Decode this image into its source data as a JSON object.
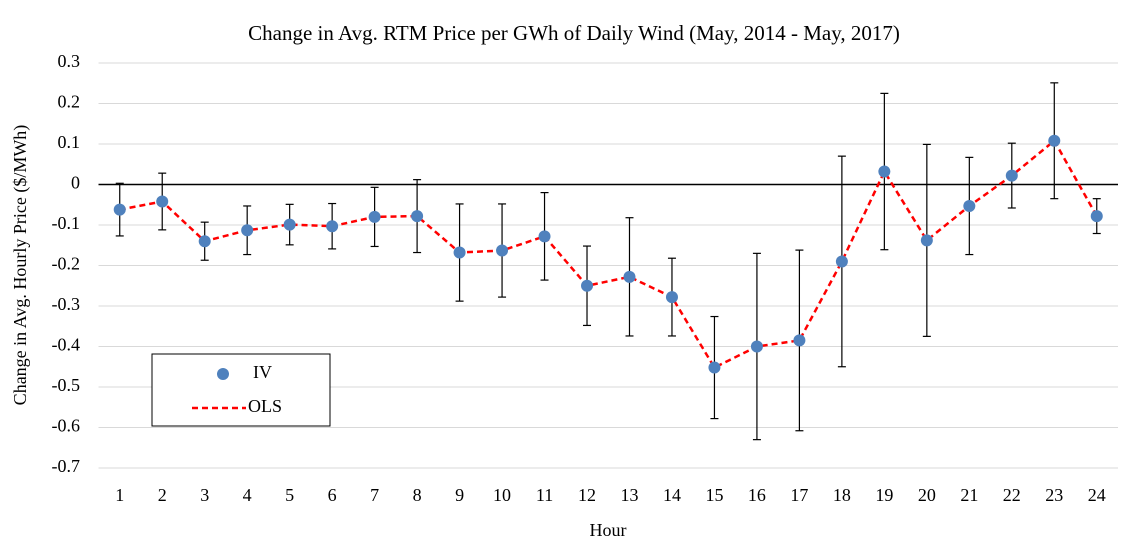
{
  "chart_data": {
    "type": "line",
    "title": "Change in Avg. RTM Price per GWh of Daily Wind (May, 2014 - May, 2017)",
    "x_label": "Hour",
    "y_label": "Change in Avg. Hourly Price ($/MWh)",
    "categories": [
      "1",
      "2",
      "3",
      "4",
      "5",
      "6",
      "7",
      "8",
      "9",
      "10",
      "11",
      "12",
      "13",
      "14",
      "15",
      "16",
      "17",
      "18",
      "19",
      "20",
      "21",
      "22",
      "23",
      "24"
    ],
    "series": [
      {
        "name": "IV",
        "color": "#4f81bd",
        "marker": "circle",
        "values": [
          -0.062,
          -0.042,
          -0.14,
          -0.113,
          -0.099,
          -0.103,
          -0.08,
          -0.078,
          -0.168,
          -0.163,
          -0.128,
          -0.25,
          -0.228,
          -0.278,
          -0.452,
          -0.4,
          -0.385,
          -0.19,
          0.032,
          -0.138,
          -0.053,
          0.022,
          0.108,
          -0.078
        ],
        "errors": [
          0.065,
          0.07,
          0.047,
          0.06,
          0.05,
          0.056,
          0.073,
          0.09,
          0.12,
          0.115,
          0.108,
          0.098,
          0.146,
          0.096,
          0.126,
          0.23,
          0.223,
          0.26,
          0.193,
          0.237,
          0.12,
          0.08,
          0.143,
          0.043
        ]
      },
      {
        "name": "OLS",
        "color": "#ff0000",
        "line_style": "dashed",
        "values": [
          -0.062,
          -0.042,
          -0.14,
          -0.113,
          -0.099,
          -0.103,
          -0.08,
          -0.078,
          -0.168,
          -0.163,
          -0.128,
          -0.25,
          -0.228,
          -0.278,
          -0.452,
          -0.4,
          -0.385,
          -0.19,
          0.032,
          -0.138,
          -0.053,
          0.022,
          0.108,
          -0.078
        ]
      }
    ],
    "ylim": [
      -0.7,
      0.3
    ],
    "yticks": [
      -0.7,
      -0.6,
      -0.5,
      -0.4,
      -0.3,
      -0.2,
      -0.1,
      0,
      0.1,
      0.2,
      0.3
    ],
    "grid": true,
    "legend_position": "lower left"
  }
}
